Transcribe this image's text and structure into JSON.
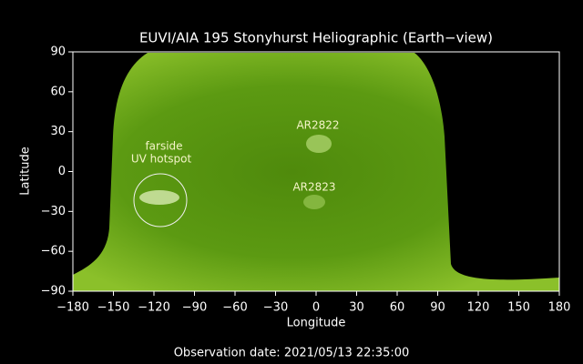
{
  "chart_data": {
    "type": "image",
    "title": "EUVI/AIA 195 Stonyhurst Heliographic (Earth−view)",
    "xlabel": "Longitude",
    "ylabel": "Latitude",
    "xlim": [
      -180,
      180
    ],
    "ylim": [
      -90,
      90
    ],
    "xticks": [
      {
        "value": -180,
        "label": "−180"
      },
      {
        "value": -150,
        "label": "−150"
      },
      {
        "value": -120,
        "label": "−120"
      },
      {
        "value": -90,
        "label": "−90"
      },
      {
        "value": -60,
        "label": "−60"
      },
      {
        "value": -30,
        "label": "−30"
      },
      0,
      30,
      60,
      90,
      120,
      150,
      180
    ],
    "yticks": [
      {
        "value": -90,
        "label": "−90"
      },
      {
        "value": -60,
        "label": "−60"
      },
      {
        "value": -30,
        "label": "−30"
      },
      0,
      30,
      60,
      90
    ],
    "annotations": [
      "AR2822",
      "AR2823",
      "farside",
      "UV hotspot"
    ],
    "footer": "Observation date: 2021/05/13 22:35:00"
  }
}
